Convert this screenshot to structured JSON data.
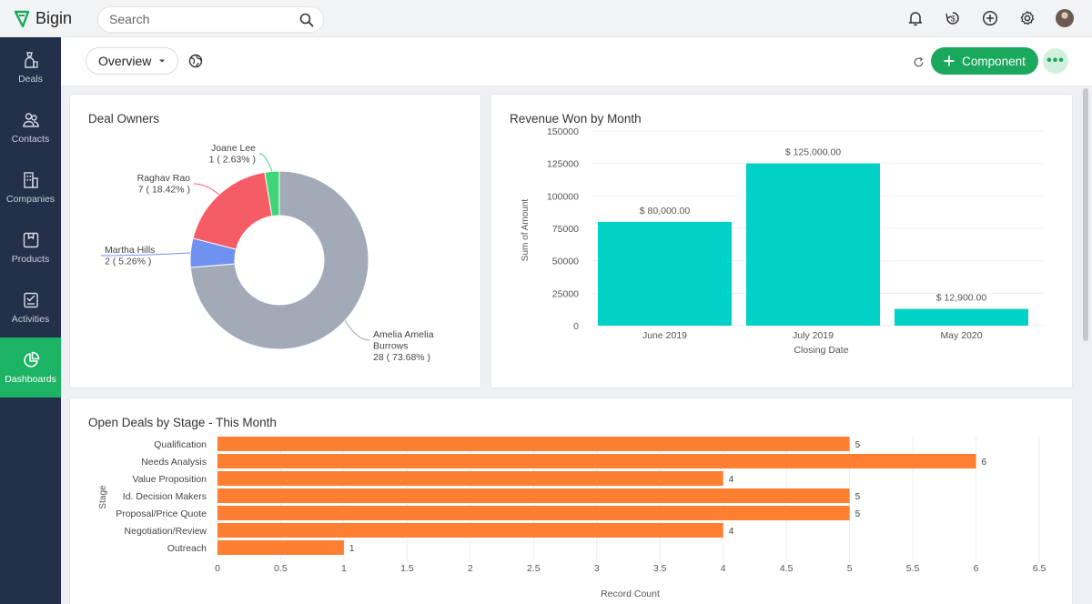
{
  "app": {
    "name": "Bigin"
  },
  "search": {
    "placeholder": "Search"
  },
  "sidebar": {
    "items": [
      {
        "label": "Deals",
        "icon": "deals-icon"
      },
      {
        "label": "Contacts",
        "icon": "contacts-icon"
      },
      {
        "label": "Companies",
        "icon": "companies-icon"
      },
      {
        "label": "Products",
        "icon": "products-icon"
      },
      {
        "label": "Activities",
        "icon": "activities-icon"
      },
      {
        "label": "Dashboards",
        "icon": "dashboards-icon"
      }
    ],
    "active": "Dashboards"
  },
  "toolbar": {
    "view_label": "Overview",
    "component_label": "Component",
    "more_label": "•••"
  },
  "colors": {
    "accent": "#1aa85d",
    "sidebar": "#23304a",
    "teal": "#00d2c8",
    "orange": "#ff7f32"
  },
  "chart_data": [
    {
      "type": "pie",
      "title": "Deal Owners",
      "donut": true,
      "slices": [
        {
          "name": "Amelia Amelia Burrows",
          "value": 28,
          "label_lines": [
            "Amelia Amelia",
            "Burrows",
            "28 ( 73.68% )"
          ],
          "color": "#a2aab7"
        },
        {
          "name": "Martha Hills",
          "value": 2,
          "label_lines": [
            "Martha Hills",
            "2 ( 5.26% )"
          ],
          "color": "#6f92f0"
        },
        {
          "name": "Raghav Rao",
          "value": 7,
          "label_lines": [
            "Raghav Rao",
            "7 ( 18.42% )"
          ],
          "color": "#f65c66"
        },
        {
          "name": "Joane Lee",
          "value": 1,
          "label_lines": [
            "Joane Lee",
            "1 ( 2.63% )"
          ],
          "color": "#3fd67a"
        }
      ]
    },
    {
      "type": "bar",
      "title": "Revenue Won by Month",
      "categories": [
        "June 2019",
        "July 2019",
        "May 2020"
      ],
      "values": [
        80000,
        125000,
        12900
      ],
      "data_labels": [
        "$ 80,000.00",
        "$ 125,000.00",
        "$ 12,900.00"
      ],
      "xlabel": "Closing Date",
      "ylabel": "Sum of Amount",
      "ylim": [
        0,
        150000
      ],
      "yticks": [
        "0",
        "25000",
        "50000",
        "75000",
        "100000",
        "125000",
        "150000"
      ],
      "color": "#00d2c8"
    },
    {
      "type": "bar",
      "orientation": "horizontal",
      "title": "Open Deals by Stage - This Month",
      "categories": [
        "Qualification",
        "Needs Analysis",
        "Value Proposition",
        "Id. Decision Makers",
        "Proposal/Price Quote",
        "Negotiation/Review",
        "Outreach"
      ],
      "values": [
        5,
        6,
        4,
        5,
        5,
        4,
        1
      ],
      "data_labels": [
        "5",
        "6",
        "4",
        "5",
        "5",
        "4",
        "1"
      ],
      "xlabel": "Record Count",
      "ylabel": "Stage",
      "xlim": [
        0,
        6.5
      ],
      "xticks": [
        "0",
        "0.5",
        "1",
        "1.5",
        "2",
        "2.5",
        "3",
        "3.5",
        "4",
        "4.5",
        "5",
        "5.5",
        "6",
        "6.5"
      ],
      "color": "#ff7f32"
    }
  ]
}
